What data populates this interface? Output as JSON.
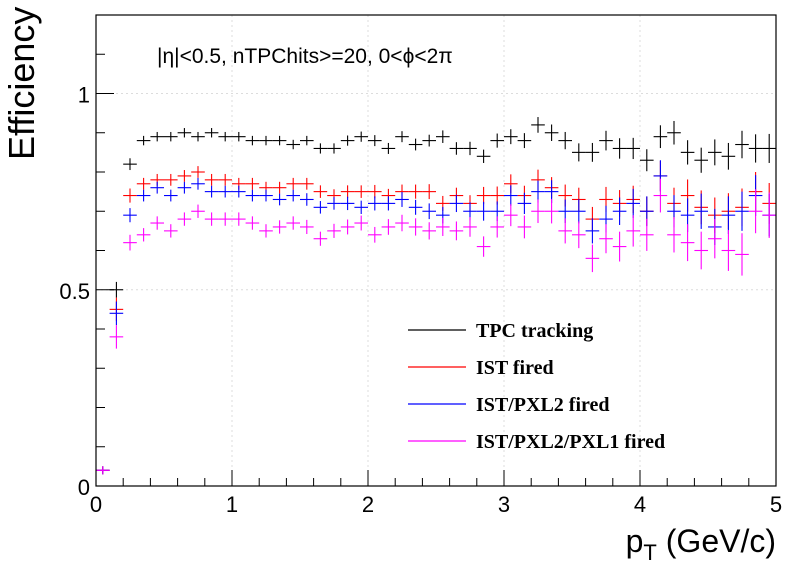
{
  "chart_data": {
    "type": "scatter",
    "annotation": "|η|<0.5, nTPChits>=20, 0<ϕ<2π",
    "xlabel": "p",
    "xlabel_sub": "T",
    "xlabel_unit": "(GeV/c)",
    "ylabel": "Efficiency",
    "xlim": [
      0,
      5
    ],
    "ylim": [
      0,
      1.2
    ],
    "grid": true,
    "legend_position": "bottom-right",
    "x_ticks": [
      "0",
      "1",
      "2",
      "3",
      "4",
      "5"
    ],
    "y_ticks": [
      "0",
      "0.5",
      "1"
    ],
    "x_tick_values": [
      0,
      1,
      2,
      3,
      4,
      5
    ],
    "y_tick_values": [
      0,
      0.5,
      1
    ],
    "bin_width": 0.1,
    "x": [
      0.05,
      0.15,
      0.25,
      0.35,
      0.45,
      0.55,
      0.65,
      0.75,
      0.85,
      0.95,
      1.05,
      1.15,
      1.25,
      1.35,
      1.45,
      1.55,
      1.65,
      1.75,
      1.85,
      1.95,
      2.05,
      2.15,
      2.25,
      2.35,
      2.45,
      2.55,
      2.65,
      2.75,
      2.85,
      2.95,
      3.05,
      3.15,
      3.25,
      3.35,
      3.45,
      3.55,
      3.65,
      3.75,
      3.85,
      3.95,
      4.05,
      4.15,
      4.25,
      4.35,
      4.45,
      4.55,
      4.65,
      4.75,
      4.85,
      4.95
    ],
    "series": [
      {
        "name": "TPC tracking",
        "color": "#000000",
        "values": [
          0.04,
          0.5,
          0.82,
          0.88,
          0.89,
          0.89,
          0.9,
          0.89,
          0.9,
          0.89,
          0.89,
          0.88,
          0.88,
          0.88,
          0.87,
          0.88,
          0.86,
          0.86,
          0.88,
          0.89,
          0.88,
          0.86,
          0.89,
          0.87,
          0.88,
          0.89,
          0.86,
          0.86,
          0.84,
          0.88,
          0.89,
          0.88,
          0.92,
          0.9,
          0.88,
          0.85,
          0.85,
          0.88,
          0.86,
          0.86,
          0.83,
          0.89,
          0.9,
          0.85,
          0.83,
          0.85,
          0.84,
          0.87,
          0.86,
          0.86
        ],
        "errors": [
          0.01,
          0.02,
          0.015,
          0.012,
          0.012,
          0.012,
          0.012,
          0.012,
          0.012,
          0.012,
          0.012,
          0.012,
          0.012,
          0.012,
          0.012,
          0.012,
          0.013,
          0.013,
          0.013,
          0.013,
          0.014,
          0.014,
          0.014,
          0.015,
          0.015,
          0.016,
          0.016,
          0.017,
          0.017,
          0.018,
          0.019,
          0.019,
          0.02,
          0.021,
          0.022,
          0.023,
          0.024,
          0.025,
          0.026,
          0.027,
          0.028,
          0.029,
          0.03,
          0.031,
          0.032,
          0.033,
          0.034,
          0.035,
          0.036,
          0.037
        ]
      },
      {
        "name": "IST fired",
        "color": "#ff0000",
        "values": [
          0.04,
          0.45,
          0.74,
          0.77,
          0.78,
          0.78,
          0.79,
          0.8,
          0.78,
          0.78,
          0.77,
          0.77,
          0.76,
          0.76,
          0.77,
          0.77,
          0.75,
          0.74,
          0.75,
          0.75,
          0.75,
          0.74,
          0.75,
          0.75,
          0.75,
          0.72,
          0.74,
          0.72,
          0.74,
          0.74,
          0.77,
          0.74,
          0.78,
          0.76,
          0.74,
          0.73,
          0.68,
          0.73,
          0.72,
          0.73,
          0.7,
          0.79,
          0.72,
          0.74,
          0.71,
          0.69,
          0.7,
          0.71,
          0.75,
          0.72
        ],
        "errors": [
          0.01,
          0.03,
          0.018,
          0.015,
          0.015,
          0.015,
          0.015,
          0.015,
          0.015,
          0.015,
          0.015,
          0.015,
          0.015,
          0.015,
          0.015,
          0.015,
          0.016,
          0.016,
          0.016,
          0.016,
          0.017,
          0.017,
          0.018,
          0.018,
          0.019,
          0.019,
          0.02,
          0.021,
          0.022,
          0.023,
          0.024,
          0.025,
          0.026,
          0.027,
          0.028,
          0.03,
          0.031,
          0.032,
          0.034,
          0.035,
          0.037,
          0.038,
          0.04,
          0.041,
          0.043,
          0.045,
          0.046,
          0.048,
          0.05,
          0.052
        ]
      },
      {
        "name": "IST/PXL2 fired",
        "color": "#0000ff",
        "values": [
          0.04,
          0.44,
          0.69,
          0.74,
          0.76,
          0.74,
          0.76,
          0.77,
          0.75,
          0.75,
          0.75,
          0.74,
          0.74,
          0.73,
          0.74,
          0.73,
          0.71,
          0.72,
          0.72,
          0.71,
          0.72,
          0.72,
          0.73,
          0.71,
          0.7,
          0.69,
          0.72,
          0.7,
          0.7,
          0.7,
          0.74,
          0.72,
          0.75,
          0.75,
          0.7,
          0.7,
          0.65,
          0.68,
          0.7,
          0.72,
          0.7,
          0.79,
          0.7,
          0.69,
          0.7,
          0.66,
          0.69,
          0.7,
          0.74,
          0.69
        ],
        "errors": [
          0.01,
          0.03,
          0.018,
          0.015,
          0.015,
          0.015,
          0.015,
          0.015,
          0.015,
          0.015,
          0.015,
          0.015,
          0.015,
          0.015,
          0.015,
          0.016,
          0.016,
          0.016,
          0.017,
          0.017,
          0.018,
          0.018,
          0.019,
          0.019,
          0.02,
          0.021,
          0.022,
          0.023,
          0.024,
          0.025,
          0.026,
          0.027,
          0.028,
          0.029,
          0.03,
          0.031,
          0.032,
          0.034,
          0.035,
          0.037,
          0.038,
          0.04,
          0.041,
          0.043,
          0.045,
          0.046,
          0.048,
          0.05,
          0.052,
          0.054
        ]
      },
      {
        "name": "IST/PXL2/PXL1 fired",
        "color": "#ff00ff",
        "values": [
          0.04,
          0.38,
          0.62,
          0.64,
          0.67,
          0.65,
          0.68,
          0.7,
          0.68,
          0.68,
          0.68,
          0.67,
          0.65,
          0.66,
          0.67,
          0.66,
          0.63,
          0.65,
          0.66,
          0.67,
          0.64,
          0.66,
          0.67,
          0.66,
          0.65,
          0.66,
          0.65,
          0.66,
          0.61,
          0.66,
          0.69,
          0.66,
          0.7,
          0.7,
          0.65,
          0.64,
          0.58,
          0.63,
          0.61,
          0.65,
          0.64,
          0.74,
          0.64,
          0.62,
          0.6,
          0.63,
          0.6,
          0.59,
          0.7,
          0.69
        ],
        "errors": [
          0.01,
          0.03,
          0.02,
          0.017,
          0.017,
          0.017,
          0.017,
          0.017,
          0.017,
          0.017,
          0.017,
          0.017,
          0.017,
          0.017,
          0.017,
          0.018,
          0.018,
          0.018,
          0.019,
          0.019,
          0.02,
          0.02,
          0.021,
          0.022,
          0.022,
          0.023,
          0.024,
          0.025,
          0.026,
          0.027,
          0.028,
          0.029,
          0.03,
          0.031,
          0.032,
          0.034,
          0.035,
          0.037,
          0.038,
          0.04,
          0.041,
          0.043,
          0.045,
          0.047,
          0.048,
          0.05,
          0.052,
          0.054,
          0.056,
          0.058
        ]
      }
    ]
  }
}
